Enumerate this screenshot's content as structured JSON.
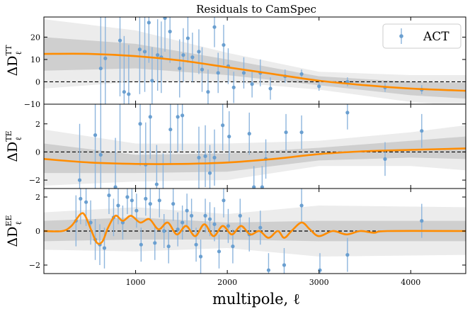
{
  "chart_data": {
    "type": "scatter",
    "title": "Residuals to CamSpec",
    "xlabel": "multipole, ℓ",
    "xlim": [
      0,
      4600
    ],
    "xticks": [
      1000,
      2000,
      3000,
      4000
    ],
    "legend": {
      "label": "ACT",
      "placement": "top-right"
    },
    "colors": {
      "points": "#6a9fd0",
      "errorbar": "#8db5dd",
      "fit": "#ff8c00",
      "band_outer": "#ececec",
      "band_inner": "#cfcfcf",
      "zero_line": "#000000"
    },
    "panels": [
      {
        "id": "TT",
        "ylabel": "ΔD_ℓ^TT",
        "ylim": [
          -10,
          29
        ],
        "yticks": [
          -10,
          0,
          10,
          20
        ],
        "points": [
          {
            "x": 620,
            "y": 6,
            "err": 35
          },
          {
            "x": 670,
            "y": 10.5,
            "err": 30
          },
          {
            "x": 830,
            "y": 18.5,
            "err": 25
          },
          {
            "x": 875,
            "y": -4.5,
            "err": 25
          },
          {
            "x": 925,
            "y": -5.5,
            "err": 22
          },
          {
            "x": 1045,
            "y": 14.5,
            "err": 20
          },
          {
            "x": 1100,
            "y": 13.5,
            "err": 18
          },
          {
            "x": 1145,
            "y": 26.5,
            "err": 18
          },
          {
            "x": 1180,
            "y": 0.5,
            "err": 15
          },
          {
            "x": 1240,
            "y": 12,
            "err": 16
          },
          {
            "x": 1280,
            "y": 11,
            "err": 16
          },
          {
            "x": 1320,
            "y": 28.5,
            "err": 15
          },
          {
            "x": 1375,
            "y": 22.5,
            "err": 14
          },
          {
            "x": 1480,
            "y": 6,
            "err": 13
          },
          {
            "x": 1520,
            "y": 12,
            "err": 12
          },
          {
            "x": 1570,
            "y": 19.5,
            "err": 11
          },
          {
            "x": 1620,
            "y": 11,
            "err": 11
          },
          {
            "x": 1690,
            "y": 13.5,
            "err": 10
          },
          {
            "x": 1725,
            "y": 5.5,
            "err": 10
          },
          {
            "x": 1790,
            "y": -4.5,
            "err": 10
          },
          {
            "x": 1860,
            "y": 24.5,
            "err": 9
          },
          {
            "x": 1900,
            "y": 4,
            "err": 9
          },
          {
            "x": 1960,
            "y": 16.5,
            "err": 9
          },
          {
            "x": 2010,
            "y": 7,
            "err": 8
          },
          {
            "x": 2070,
            "y": -2.5,
            "err": 7
          },
          {
            "x": 2180,
            "y": 4,
            "err": 7
          },
          {
            "x": 2270,
            "y": -1,
            "err": 6
          },
          {
            "x": 2360,
            "y": 4,
            "err": 6
          },
          {
            "x": 2470,
            "y": -3,
            "err": 5
          },
          {
            "x": 2630,
            "y": 2.5,
            "err": 3
          },
          {
            "x": 2810,
            "y": 3.5,
            "err": 2
          },
          {
            "x": 3000,
            "y": -2,
            "err": 2
          },
          {
            "x": 3310,
            "y": 0,
            "err": 2
          },
          {
            "x": 3720,
            "y": -2.5,
            "err": 2
          },
          {
            "x": 4120,
            "y": -3.5,
            "err": 2
          }
        ],
        "fit": [
          {
            "x": 0,
            "y": 12.5
          },
          {
            "x": 500,
            "y": 12.5
          },
          {
            "x": 1000,
            "y": 11.5
          },
          {
            "x": 1500,
            "y": 9.5
          },
          {
            "x": 2000,
            "y": 6.5
          },
          {
            "x": 2500,
            "y": 3.5
          },
          {
            "x": 3000,
            "y": 0.5
          },
          {
            "x": 3500,
            "y": -1.5
          },
          {
            "x": 4000,
            "y": -3
          },
          {
            "x": 4600,
            "y": -4
          }
        ],
        "band_inner": [
          {
            "x": 0,
            "lo": 5,
            "hi": 20
          },
          {
            "x": 1000,
            "lo": 6,
            "hi": 17
          },
          {
            "x": 2000,
            "lo": 3,
            "hi": 10
          },
          {
            "x": 3000,
            "lo": -1.5,
            "hi": 2.5
          },
          {
            "x": 4000,
            "lo": -6,
            "hi": 0
          },
          {
            "x": 4600,
            "lo": -7.5,
            "hi": -0.5
          }
        ],
        "band_outer": [
          {
            "x": 0,
            "lo": -3,
            "hi": 28
          },
          {
            "x": 1000,
            "lo": 0,
            "hi": 23
          },
          {
            "x": 2000,
            "lo": 0,
            "hi": 13
          },
          {
            "x": 3000,
            "lo": -3.5,
            "hi": 4.5
          },
          {
            "x": 4000,
            "lo": -9,
            "hi": 3
          },
          {
            "x": 4600,
            "lo": -11,
            "hi": 3
          }
        ]
      },
      {
        "id": "TE",
        "ylabel": "ΔD_ℓ^TE",
        "ylim": [
          -2.6,
          3.4
        ],
        "yticks": [
          -2,
          0,
          2
        ],
        "points": [
          {
            "x": 390,
            "y": -2,
            "err": 4
          },
          {
            "x": 560,
            "y": 1.2,
            "err": 4
          },
          {
            "x": 620,
            "y": -0.2,
            "err": 4
          },
          {
            "x": 780,
            "y": -2.5,
            "err": 3.5
          },
          {
            "x": 830,
            "y": 3.6,
            "err": 3.5
          },
          {
            "x": 1050,
            "y": 2,
            "err": 3
          },
          {
            "x": 1110,
            "y": -0.9,
            "err": 3
          },
          {
            "x": 1160,
            "y": 2.5,
            "err": 3
          },
          {
            "x": 1230,
            "y": -2.3,
            "err": 2.8
          },
          {
            "x": 1300,
            "y": -2.9,
            "err": 2.8
          },
          {
            "x": 1380,
            "y": 1.6,
            "err": 2.5
          },
          {
            "x": 1460,
            "y": 2.5,
            "err": 2.5
          },
          {
            "x": 1510,
            "y": 2.6,
            "err": 2.5
          },
          {
            "x": 1690,
            "y": -0.4,
            "err": 2.2
          },
          {
            "x": 1760,
            "y": -0.3,
            "err": 2.2
          },
          {
            "x": 1810,
            "y": -1.5,
            "err": 2
          },
          {
            "x": 1860,
            "y": -0.4,
            "err": 2
          },
          {
            "x": 1950,
            "y": 1.9,
            "err": 1.8
          },
          {
            "x": 2020,
            "y": 1.1,
            "err": 1.8
          },
          {
            "x": 2240,
            "y": 1.3,
            "err": 1.5
          },
          {
            "x": 2290,
            "y": -2.5,
            "err": 1.5
          },
          {
            "x": 2380,
            "y": -2.5,
            "err": 1.5
          },
          {
            "x": 2420,
            "y": -0.5,
            "err": 1.4
          },
          {
            "x": 2640,
            "y": 1.4,
            "err": 1.3
          },
          {
            "x": 2810,
            "y": 1.4,
            "err": 1.2
          },
          {
            "x": 3310,
            "y": 2.8,
            "err": 1.2
          },
          {
            "x": 3720,
            "y": -0.5,
            "err": 1.2
          },
          {
            "x": 4120,
            "y": 1.5,
            "err": 1.2
          }
        ],
        "fit": [
          {
            "x": 0,
            "y": -0.5
          },
          {
            "x": 500,
            "y": -0.75
          },
          {
            "x": 1000,
            "y": -0.85
          },
          {
            "x": 1500,
            "y": -0.85
          },
          {
            "x": 2000,
            "y": -0.75
          },
          {
            "x": 2500,
            "y": -0.5
          },
          {
            "x": 3000,
            "y": -0.15
          },
          {
            "x": 3500,
            "y": 0.05
          },
          {
            "x": 4000,
            "y": 0.15
          },
          {
            "x": 4600,
            "y": 0.25
          }
        ],
        "band_inner": [
          {
            "x": 0,
            "lo": -1.5,
            "hi": 0.6
          },
          {
            "x": 1000,
            "lo": -1.5,
            "hi": -0.2
          },
          {
            "x": 2000,
            "lo": -1.4,
            "hi": -0.1
          },
          {
            "x": 3000,
            "lo": -0.6,
            "hi": 0.3
          },
          {
            "x": 4000,
            "lo": -0.4,
            "hi": 0.8
          },
          {
            "x": 4600,
            "lo": -0.5,
            "hi": 1.1
          }
        ],
        "band_outer": [
          {
            "x": 0,
            "lo": -2.4,
            "hi": 1.6
          },
          {
            "x": 1000,
            "lo": -2.1,
            "hi": 0.6
          },
          {
            "x": 2000,
            "lo": -2,
            "hi": 0.6
          },
          {
            "x": 3000,
            "lo": -1,
            "hi": 0.8
          },
          {
            "x": 4000,
            "lo": -1,
            "hi": 1.4
          },
          {
            "x": 4600,
            "lo": -1.3,
            "hi": 1.9
          }
        ]
      },
      {
        "id": "EE",
        "ylabel": "ΔD_ℓ^EE",
        "ylim": [
          -2.5,
          2.5
        ],
        "yticks": [
          -2,
          0,
          2
        ],
        "points": [
          {
            "x": 350,
            "y": 0.6,
            "err": 1.5
          },
          {
            "x": 400,
            "y": 1.9,
            "err": 1.5
          },
          {
            "x": 460,
            "y": 1.7,
            "err": 1.4
          },
          {
            "x": 510,
            "y": 0.5,
            "err": 1.3
          },
          {
            "x": 560,
            "y": -0.5,
            "err": 1.2
          },
          {
            "x": 610,
            "y": -0.8,
            "err": 1.2
          },
          {
            "x": 660,
            "y": -1,
            "err": 1.2
          },
          {
            "x": 710,
            "y": 2.1,
            "err": 1.1
          },
          {
            "x": 760,
            "y": 0.8,
            "err": 1.1
          },
          {
            "x": 810,
            "y": 1.5,
            "err": 1.1
          },
          {
            "x": 860,
            "y": 0.5,
            "err": 1
          },
          {
            "x": 910,
            "y": 2,
            "err": 1
          },
          {
            "x": 960,
            "y": 1.8,
            "err": 1
          },
          {
            "x": 1010,
            "y": 1.2,
            "err": 1
          },
          {
            "x": 1060,
            "y": -0.8,
            "err": 1
          },
          {
            "x": 1110,
            "y": 1.9,
            "err": 1
          },
          {
            "x": 1160,
            "y": 1.6,
            "err": 1
          },
          {
            "x": 1210,
            "y": -0.7,
            "err": 1
          },
          {
            "x": 1260,
            "y": 1.8,
            "err": 1
          },
          {
            "x": 1310,
            "y": 0,
            "err": 1
          },
          {
            "x": 1360,
            "y": -0.9,
            "err": 1
          },
          {
            "x": 1410,
            "y": 1.6,
            "err": 1
          },
          {
            "x": 1460,
            "y": 0.1,
            "err": 1
          },
          {
            "x": 1510,
            "y": 0.5,
            "err": 1
          },
          {
            "x": 1560,
            "y": 1.2,
            "err": 1
          },
          {
            "x": 1610,
            "y": 0.9,
            "err": 1
          },
          {
            "x": 1660,
            "y": -0.8,
            "err": 1
          },
          {
            "x": 1710,
            "y": -1.5,
            "err": 1
          },
          {
            "x": 1760,
            "y": 0.9,
            "err": 1
          },
          {
            "x": 1810,
            "y": 0.7,
            "err": 1
          },
          {
            "x": 1860,
            "y": 0.4,
            "err": 1
          },
          {
            "x": 1910,
            "y": -1.2,
            "err": 1
          },
          {
            "x": 1960,
            "y": 1.8,
            "err": 1
          },
          {
            "x": 2010,
            "y": 0.3,
            "err": 1
          },
          {
            "x": 2060,
            "y": -0.9,
            "err": 1
          },
          {
            "x": 2140,
            "y": 0.9,
            "err": 1
          },
          {
            "x": 2240,
            "y": -0.2,
            "err": 1
          },
          {
            "x": 2360,
            "y": 0.2,
            "err": 1
          },
          {
            "x": 2450,
            "y": -2.3,
            "err": 1
          },
          {
            "x": 2620,
            "y": -2,
            "err": 1
          },
          {
            "x": 2810,
            "y": 1.5,
            "err": 1
          },
          {
            "x": 3010,
            "y": -2.3,
            "err": 1
          },
          {
            "x": 3310,
            "y": -1.4,
            "err": 1
          },
          {
            "x": 4120,
            "y": 0.6,
            "err": 1
          }
        ],
        "fit": [
          {
            "x": 0,
            "y": 0
          },
          {
            "x": 200,
            "y": 0
          },
          {
            "x": 300,
            "y": 0.3
          },
          {
            "x": 400,
            "y": 1
          },
          {
            "x": 450,
            "y": 0.9
          },
          {
            "x": 520,
            "y": 0
          },
          {
            "x": 580,
            "y": -0.7
          },
          {
            "x": 640,
            "y": -0.6
          },
          {
            "x": 700,
            "y": 0.2
          },
          {
            "x": 780,
            "y": 0.9
          },
          {
            "x": 860,
            "y": 0.6
          },
          {
            "x": 950,
            "y": 0.9
          },
          {
            "x": 1050,
            "y": 0.5
          },
          {
            "x": 1150,
            "y": 0.7
          },
          {
            "x": 1250,
            "y": 0.1
          },
          {
            "x": 1350,
            "y": 0.5
          },
          {
            "x": 1450,
            "y": -0.2
          },
          {
            "x": 1550,
            "y": 0.3
          },
          {
            "x": 1650,
            "y": -0.3
          },
          {
            "x": 1750,
            "y": 0.4
          },
          {
            "x": 1850,
            "y": -0.3
          },
          {
            "x": 1950,
            "y": 0.3
          },
          {
            "x": 2050,
            "y": -0.2
          },
          {
            "x": 2150,
            "y": 0.3
          },
          {
            "x": 2250,
            "y": -0.2
          },
          {
            "x": 2350,
            "y": 0
          },
          {
            "x": 2450,
            "y": -0.4
          },
          {
            "x": 2550,
            "y": 0
          },
          {
            "x": 2620,
            "y": -0.4
          },
          {
            "x": 2700,
            "y": 0
          },
          {
            "x": 2810,
            "y": 0.5
          },
          {
            "x": 2900,
            "y": 0.1
          },
          {
            "x": 3000,
            "y": -0.3
          },
          {
            "x": 3150,
            "y": 0
          },
          {
            "x": 3300,
            "y": -0.2
          },
          {
            "x": 3450,
            "y": 0
          },
          {
            "x": 3600,
            "y": -0.1
          },
          {
            "x": 3750,
            "y": 0
          },
          {
            "x": 4600,
            "y": 0
          }
        ],
        "band_inner": [
          {
            "x": 0,
            "lo": -0.6,
            "hi": 0.6
          },
          {
            "x": 1000,
            "lo": -0.5,
            "hi": 0.8
          },
          {
            "x": 2000,
            "lo": -0.5,
            "hi": 0.5
          },
          {
            "x": 3000,
            "lo": -0.6,
            "hi": 0.6
          },
          {
            "x": 4600,
            "lo": -0.6,
            "hi": 0.6
          }
        ],
        "band_outer": [
          {
            "x": 0,
            "lo": -1.1,
            "hi": 1.1
          },
          {
            "x": 1000,
            "lo": -1.2,
            "hi": 1.4
          },
          {
            "x": 2000,
            "lo": -1,
            "hi": 1
          },
          {
            "x": 3000,
            "lo": -1.5,
            "hi": 1.5
          },
          {
            "x": 4600,
            "lo": -1.4,
            "hi": 1.4
          }
        ]
      }
    ]
  }
}
